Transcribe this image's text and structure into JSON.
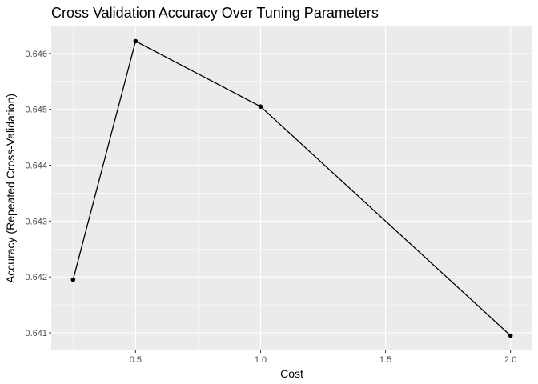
{
  "chart_data": {
    "type": "line",
    "title": "Cross Validation Accuracy Over Tuning Parameters",
    "xlabel": "Cost",
    "ylabel": "Accuracy (Repeated Cross-Validation)",
    "x": [
      0.25,
      0.5,
      1.0,
      2.0
    ],
    "series": [
      {
        "values": [
          0.64195,
          0.64622,
          0.64505,
          0.64095
        ]
      }
    ],
    "xlim": [
      0.1625,
      2.0875
    ],
    "ylim": [
      0.640685,
      0.646485
    ],
    "xticks": [
      0.5,
      1.0,
      1.5,
      2.0
    ],
    "xtick_labels": [
      "0.5",
      "1.0",
      "1.5",
      "2.0"
    ],
    "xminor": [
      0.25,
      0.75,
      1.25,
      1.75
    ],
    "yticks": [
      0.641,
      0.642,
      0.643,
      0.644,
      0.645,
      0.646
    ],
    "ytick_labels": [
      "0.641",
      "0.642",
      "0.643",
      "0.644",
      "0.645",
      "0.646"
    ],
    "yminor": [
      0.6405,
      0.6415,
      0.6425,
      0.6435,
      0.6445,
      0.6455,
      0.6465
    ],
    "grid": true,
    "legend": "none",
    "panel_color": "#ebebeb",
    "grid_color": "#ffffff",
    "line_color": "#000000",
    "point_color": "#000000"
  }
}
